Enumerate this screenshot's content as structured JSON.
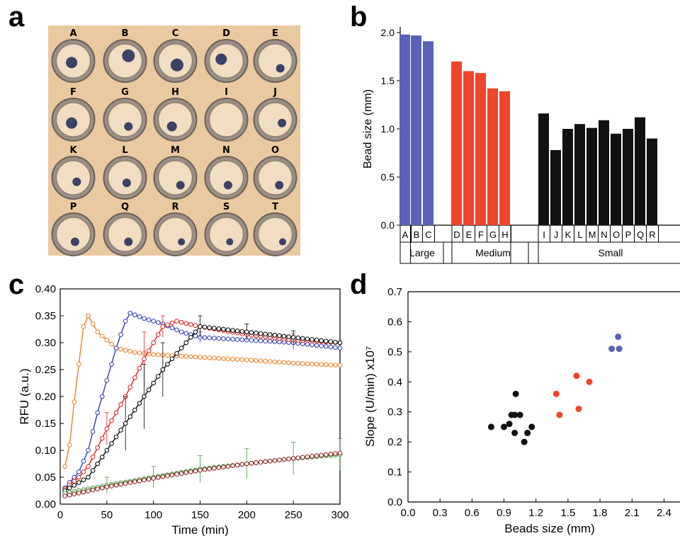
{
  "panels": {
    "a": "a",
    "b": "b",
    "c": "c",
    "d": "d"
  },
  "wells": {
    "labels": [
      "A",
      "B",
      "C",
      "D",
      "E",
      "F",
      "G",
      "H",
      "I",
      "J",
      "K",
      "L",
      "M",
      "N",
      "O",
      "P",
      "Q",
      "R",
      "S",
      "T"
    ],
    "colors": {
      "background": "#e8c9a0",
      "cup": "#f1ddc1",
      "bead": "#3d4166"
    }
  },
  "chart_data": [
    {
      "id": "b",
      "type": "bar",
      "ylabel": "Bead size (mm)",
      "ylim": [
        0.0,
        2.0
      ],
      "yticks": [
        "0.0",
        "0.5",
        "1.0",
        "1.5",
        "2.0"
      ],
      "categories": [
        "A",
        "B",
        "C",
        "D",
        "E",
        "F",
        "G",
        "H",
        "I",
        "J",
        "K",
        "L",
        "M",
        "N",
        "O",
        "P",
        "Q",
        "R"
      ],
      "values": [
        1.98,
        1.97,
        1.91,
        1.7,
        1.6,
        1.58,
        1.42,
        1.39,
        1.16,
        0.78,
        1.0,
        1.05,
        1.01,
        1.09,
        0.95,
        1.0,
        1.12,
        0.9
      ],
      "groups": [
        {
          "name": "Large",
          "members": [
            "A",
            "B",
            "C"
          ],
          "color": "#5a61b8"
        },
        {
          "name": "Medium",
          "members": [
            "D",
            "E",
            "F",
            "G",
            "H"
          ],
          "color": "#f0452a"
        },
        {
          "name": "Small",
          "members": [
            "I",
            "J",
            "K",
            "L",
            "M",
            "N",
            "O",
            "P",
            "Q",
            "R"
          ],
          "color": "#111111"
        }
      ]
    },
    {
      "id": "c",
      "type": "line",
      "xlabel": "Time (min)",
      "ylabel": "RFU (a.u.)",
      "xlim": [
        0,
        300
      ],
      "ylim": [
        0.0,
        0.4
      ],
      "xticks": [
        "0",
        "50",
        "100",
        "150",
        "200",
        "250",
        "300"
      ],
      "yticks": [
        "0.00",
        "0.05",
        "0.10",
        "0.15",
        "0.20",
        "0.25",
        "0.30",
        "0.35",
        "0.40"
      ],
      "series": [
        {
          "color": "#f08020",
          "points": [
            [
              5,
              0.07
            ],
            [
              10,
              0.11
            ],
            [
              15,
              0.19
            ],
            [
              20,
              0.26
            ],
            [
              25,
              0.33
            ],
            [
              30,
              0.35
            ],
            [
              40,
              0.32
            ],
            [
              60,
              0.29
            ],
            [
              80,
              0.282
            ],
            [
              100,
              0.278
            ],
            [
              150,
              0.273
            ],
            [
              200,
              0.268
            ],
            [
              250,
              0.262
            ],
            [
              300,
              0.258
            ]
          ],
          "errors": [
            [
              30,
              0.003
            ]
          ]
        },
        {
          "color": "#2e3eb0",
          "points": [
            [
              5,
              0.03
            ],
            [
              20,
              0.06
            ],
            [
              30,
              0.1
            ],
            [
              40,
              0.17
            ],
            [
              50,
              0.23
            ],
            [
              60,
              0.29
            ],
            [
              70,
              0.34
            ],
            [
              75,
              0.355
            ],
            [
              90,
              0.345
            ],
            [
              110,
              0.335
            ],
            [
              130,
              0.32
            ],
            [
              150,
              0.31
            ],
            [
              200,
              0.305
            ],
            [
              250,
              0.3
            ],
            [
              300,
              0.29
            ]
          ],
          "errors": [
            [
              150,
              0.01
            ],
            [
              250,
              0.012
            ]
          ]
        },
        {
          "color": "#e02020",
          "points": [
            [
              5,
              0.028
            ],
            [
              20,
              0.05
            ],
            [
              30,
              0.07
            ],
            [
              50,
              0.14
            ],
            [
              70,
              0.2
            ],
            [
              90,
              0.27
            ],
            [
              110,
              0.33
            ],
            [
              125,
              0.34
            ],
            [
              150,
              0.33
            ],
            [
              200,
              0.315
            ],
            [
              250,
              0.305
            ],
            [
              300,
              0.3
            ]
          ],
          "errors": [
            [
              50,
              0.03
            ],
            [
              90,
              0.05
            ],
            [
              110,
              0.02
            ],
            [
              250,
              0.012
            ]
          ]
        },
        {
          "color": "#000000",
          "points": [
            [
              5,
              0.025
            ],
            [
              30,
              0.05
            ],
            [
              50,
              0.1
            ],
            [
              70,
              0.15
            ],
            [
              90,
              0.2
            ],
            [
              110,
              0.25
            ],
            [
              130,
              0.29
            ],
            [
              150,
              0.33
            ],
            [
              200,
              0.32
            ],
            [
              250,
              0.31
            ],
            [
              300,
              0.3
            ]
          ],
          "errors": [
            [
              70,
              0.05
            ],
            [
              90,
              0.06
            ],
            [
              110,
              0.05
            ],
            [
              150,
              0.02
            ],
            [
              200,
              0.015
            ],
            [
              250,
              0.012
            ]
          ]
        },
        {
          "color": "#3a9a3a",
          "points": [
            [
              5,
              0.02
            ],
            [
              50,
              0.035
            ],
            [
              100,
              0.05
            ],
            [
              150,
              0.065
            ],
            [
              200,
              0.075
            ],
            [
              250,
              0.085
            ],
            [
              300,
              0.092
            ]
          ],
          "errors": [
            [
              50,
              0.015
            ],
            [
              100,
              0.02
            ],
            [
              150,
              0.025
            ],
            [
              200,
              0.028
            ],
            [
              250,
              0.03
            ],
            [
              300,
              0.03
            ]
          ]
        },
        {
          "color": "#8a1a14",
          "points": [
            [
              5,
              0.015
            ],
            [
              50,
              0.032
            ],
            [
              100,
              0.048
            ],
            [
              150,
              0.063
            ],
            [
              200,
              0.075
            ],
            [
              250,
              0.085
            ],
            [
              300,
              0.095
            ]
          ],
          "errors": []
        }
      ]
    },
    {
      "id": "d",
      "type": "scatter",
      "xlabel": "Beads size (mm)",
      "ylabel": "Slope (U/min) x10⁷",
      "xlim": [
        0.0,
        2.55
      ],
      "ylim": [
        0.0,
        0.7
      ],
      "xticks": [
        "0.0",
        "0.3",
        "0.6",
        "0.9",
        "1.2",
        "1.5",
        "1.8",
        "2.1",
        "2.4"
      ],
      "yticks": [
        "0.0",
        "0.1",
        "0.2",
        "0.3",
        "0.4",
        "0.5",
        "0.6",
        "0.7"
      ],
      "series": [
        {
          "color": "#5a61b8",
          "points": [
            [
              1.91,
              0.51
            ],
            [
              1.97,
              0.55
            ],
            [
              1.98,
              0.51
            ]
          ]
        },
        {
          "color": "#f0452a",
          "points": [
            [
              1.39,
              0.36
            ],
            [
              1.42,
              0.29
            ],
            [
              1.58,
              0.42
            ],
            [
              1.6,
              0.31
            ],
            [
              1.7,
              0.4
            ]
          ]
        },
        {
          "color": "#111111",
          "points": [
            [
              0.78,
              0.25
            ],
            [
              0.9,
              0.25
            ],
            [
              0.95,
              0.26
            ],
            [
              0.97,
              0.29
            ],
            [
              1.0,
              0.29
            ],
            [
              1.0,
              0.23
            ],
            [
              1.01,
              0.36
            ],
            [
              1.05,
              0.29
            ],
            [
              1.09,
              0.2
            ],
            [
              1.12,
              0.23
            ],
            [
              1.16,
              0.25
            ]
          ]
        }
      ]
    }
  ]
}
